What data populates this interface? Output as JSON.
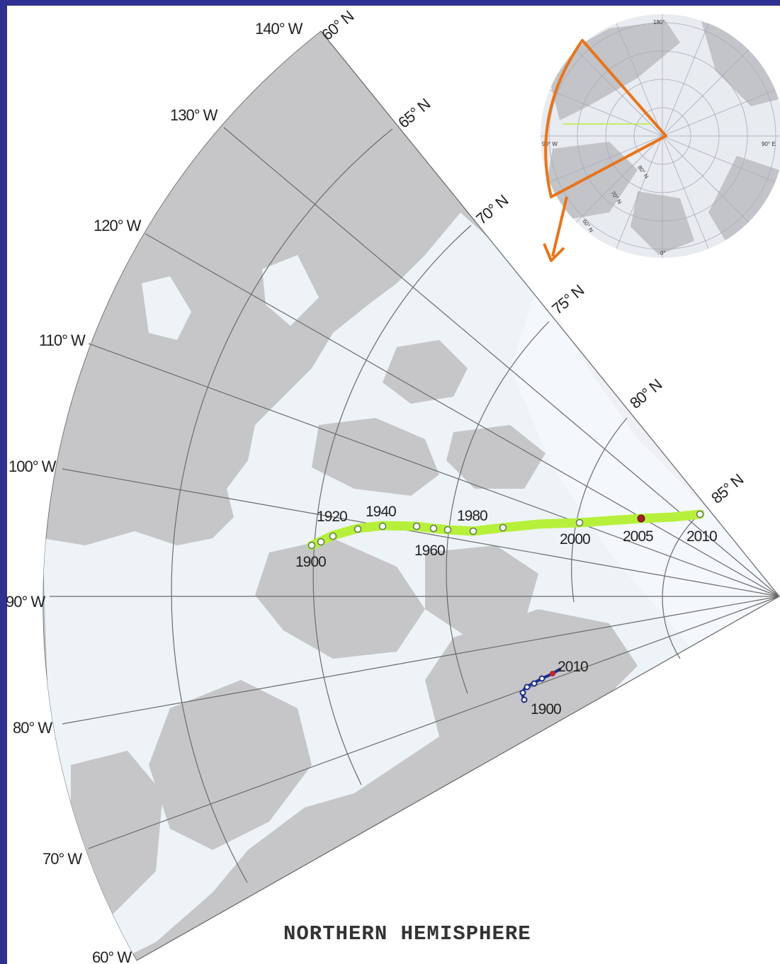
{
  "caption": "NORTHERN HEMISPHERE",
  "longitude_labels": [
    "140° W",
    "130° W",
    "120° W",
    "110° W",
    "100° W",
    "90° W",
    "80° W",
    "70° W",
    "60° W"
  ],
  "latitude_labels": [
    "60° N",
    "65° N",
    "70° N",
    "75° N",
    "80° N",
    "85° N"
  ],
  "north_pole_path": {
    "color": "#b7f03a",
    "year_labels": [
      "1900",
      "1920",
      "1940",
      "1960",
      "1980",
      "2000",
      "2005",
      "2010"
    ]
  },
  "south_dip_path": {
    "color": "#1d2c8f",
    "year_labels": [
      "1900",
      "2010"
    ]
  },
  "inset": {
    "labels": [
      "180°",
      "90° W",
      "90° E",
      "0°",
      "80° N",
      "70° N",
      "60° N"
    ],
    "outline_color": "#e8741c"
  },
  "colors": {
    "frame": "#2e3192",
    "land": "#c6c6c8",
    "ocean_low": "#eef3f8",
    "ocean_high": "#f4f7fb",
    "grid": "#6b6b6b"
  }
}
